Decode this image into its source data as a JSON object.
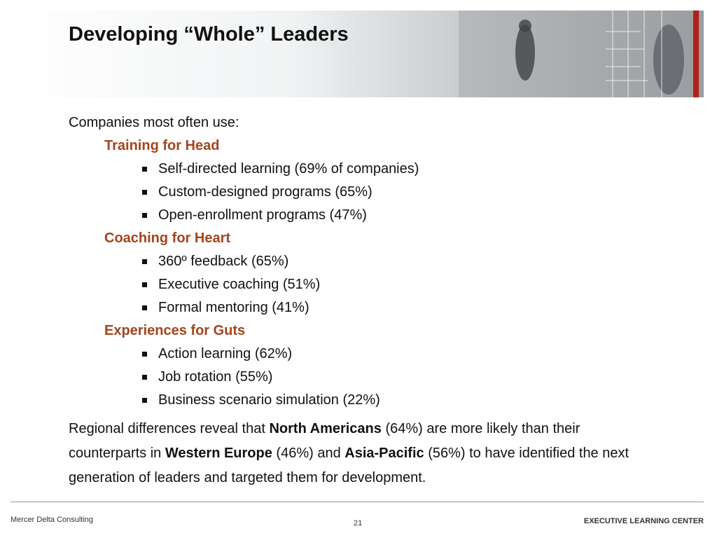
{
  "header": {
    "title": "Developing “Whole” Leaders"
  },
  "body": {
    "intro": "Companies most often use:",
    "sections": [
      {
        "heading": "Training for Head",
        "items": [
          "Self-directed learning (69% of companies)",
          "Custom-designed programs (65%)",
          "Open-enrollment programs (47%)"
        ]
      },
      {
        "heading": "Coaching for Heart",
        "items": [
          "360º feedback (65%)",
          "Executive coaching (51%)",
          "Formal mentoring (41%)"
        ]
      },
      {
        "heading": "Experiences for Guts",
        "items": [
          "Action learning (62%)",
          "Job rotation (55%)",
          "Business scenario simulation (22%)"
        ]
      }
    ],
    "paragraph": [
      "Regional differences reveal that ",
      "North Americans",
      " (64%) are more likely than their counterparts in ",
      "Western Europe",
      " (46%) and ",
      "Asia-Pacific",
      " (56%) to have identified the next generation of leaders and targeted them for development."
    ]
  },
  "footer": {
    "company": "Mercer Delta Consulting",
    "page": "21",
    "brand": "EXECUTIVE LEARNING CENTER"
  }
}
